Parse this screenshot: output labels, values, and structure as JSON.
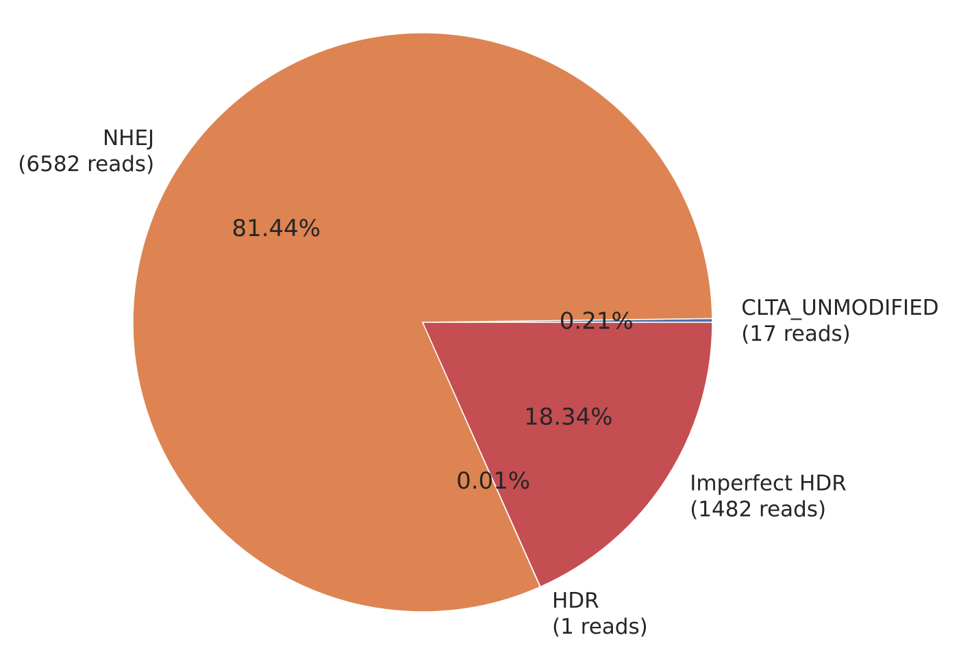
{
  "chart_data": {
    "type": "pie",
    "title": "",
    "slices": [
      {
        "name": "CLTA_UNMODIFIED",
        "label_line2": "(17 reads)",
        "reads": 17,
        "percent_label": "0.21%",
        "color": "#4c72b0"
      },
      {
        "name": "NHEJ",
        "label_line2": "(6582 reads)",
        "reads": 6582,
        "percent_label": "81.44%",
        "color": "#dd8452"
      },
      {
        "name": "HDR",
        "label_line2": "(1 reads)",
        "reads": 1,
        "percent_label": "0.01%",
        "color": "#55a868"
      },
      {
        "name": "Imperfect HDR",
        "label_line2": "(1482 reads)",
        "reads": 1482,
        "percent_label": "18.34%",
        "color": "#c44e52"
      }
    ],
    "start_angle_deg": 0,
    "direction": "counterclockwise",
    "legend": "none"
  }
}
